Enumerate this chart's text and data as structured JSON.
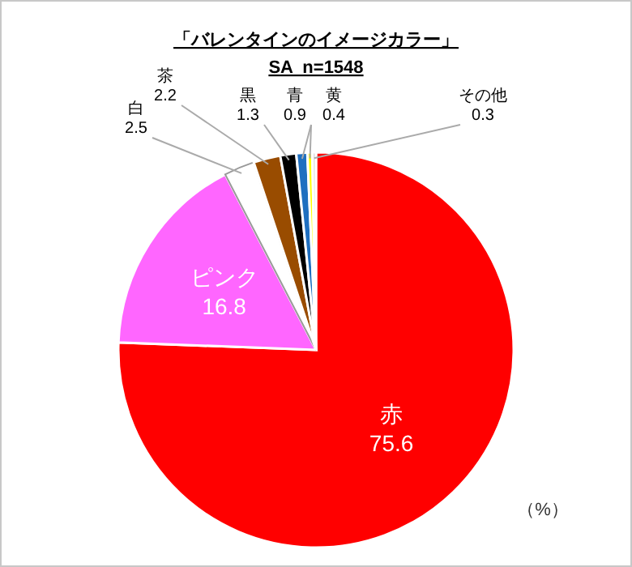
{
  "chart_data": {
    "type": "pie",
    "title": "「バレンタインのイメージカラー」",
    "subtitle": "SA  n=1548",
    "categories": [
      "赤",
      "ピンク",
      "白",
      "茶",
      "黒",
      "青",
      "黄",
      "その他"
    ],
    "values": [
      75.6,
      16.8,
      2.5,
      2.2,
      1.3,
      0.9,
      0.4,
      0.3
    ],
    "colors": [
      "#ff0000",
      "#ff66ff",
      "#ffffff",
      "#994c00",
      "#000000",
      "#1f6fc0",
      "#ffff00",
      "#dddddd"
    ],
    "data_labels": true,
    "annotations": [
      "（%）"
    ]
  }
}
